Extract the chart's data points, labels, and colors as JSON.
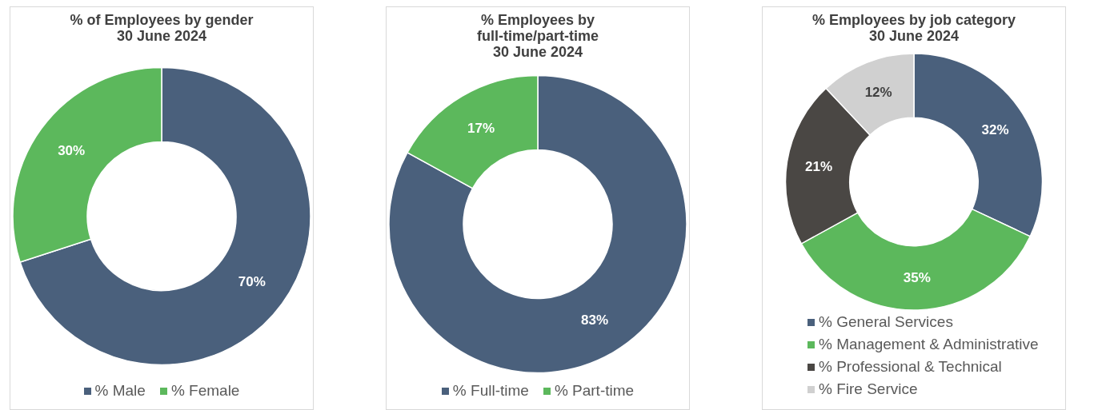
{
  "chart_data": [
    {
      "type": "donut",
      "title": "% of Employees by gender\n30 June 2024",
      "categories": [
        "% Male",
        "% Female"
      ],
      "values": [
        70,
        30
      ],
      "colors": [
        "#4a607c",
        "#5cb85c"
      ],
      "value_labels": [
        "70%",
        "30%"
      ],
      "legend": "bottom"
    },
    {
      "type": "donut",
      "title": "% Employees by\nfull-time/part-time\n30 June 2024",
      "categories": [
        "% Full-time",
        "% Part-time"
      ],
      "values": [
        83,
        17
      ],
      "colors": [
        "#4a607c",
        "#5cb85c"
      ],
      "value_labels": [
        "83%",
        "17%"
      ],
      "legend": "bottom"
    },
    {
      "type": "donut",
      "title": "% Employees by job category\n30 June 2024",
      "categories": [
        "% General Services",
        "% Management & Administrative",
        "% Professional & Technical",
        "% Fire Service"
      ],
      "values": [
        32,
        35,
        21,
        12
      ],
      "colors": [
        "#4a607c",
        "#5cb85c",
        "#4a4744",
        "#d0d0d0"
      ],
      "value_labels": [
        "32%",
        "35%",
        "21%",
        "12%"
      ],
      "legend": "bottom"
    }
  ]
}
